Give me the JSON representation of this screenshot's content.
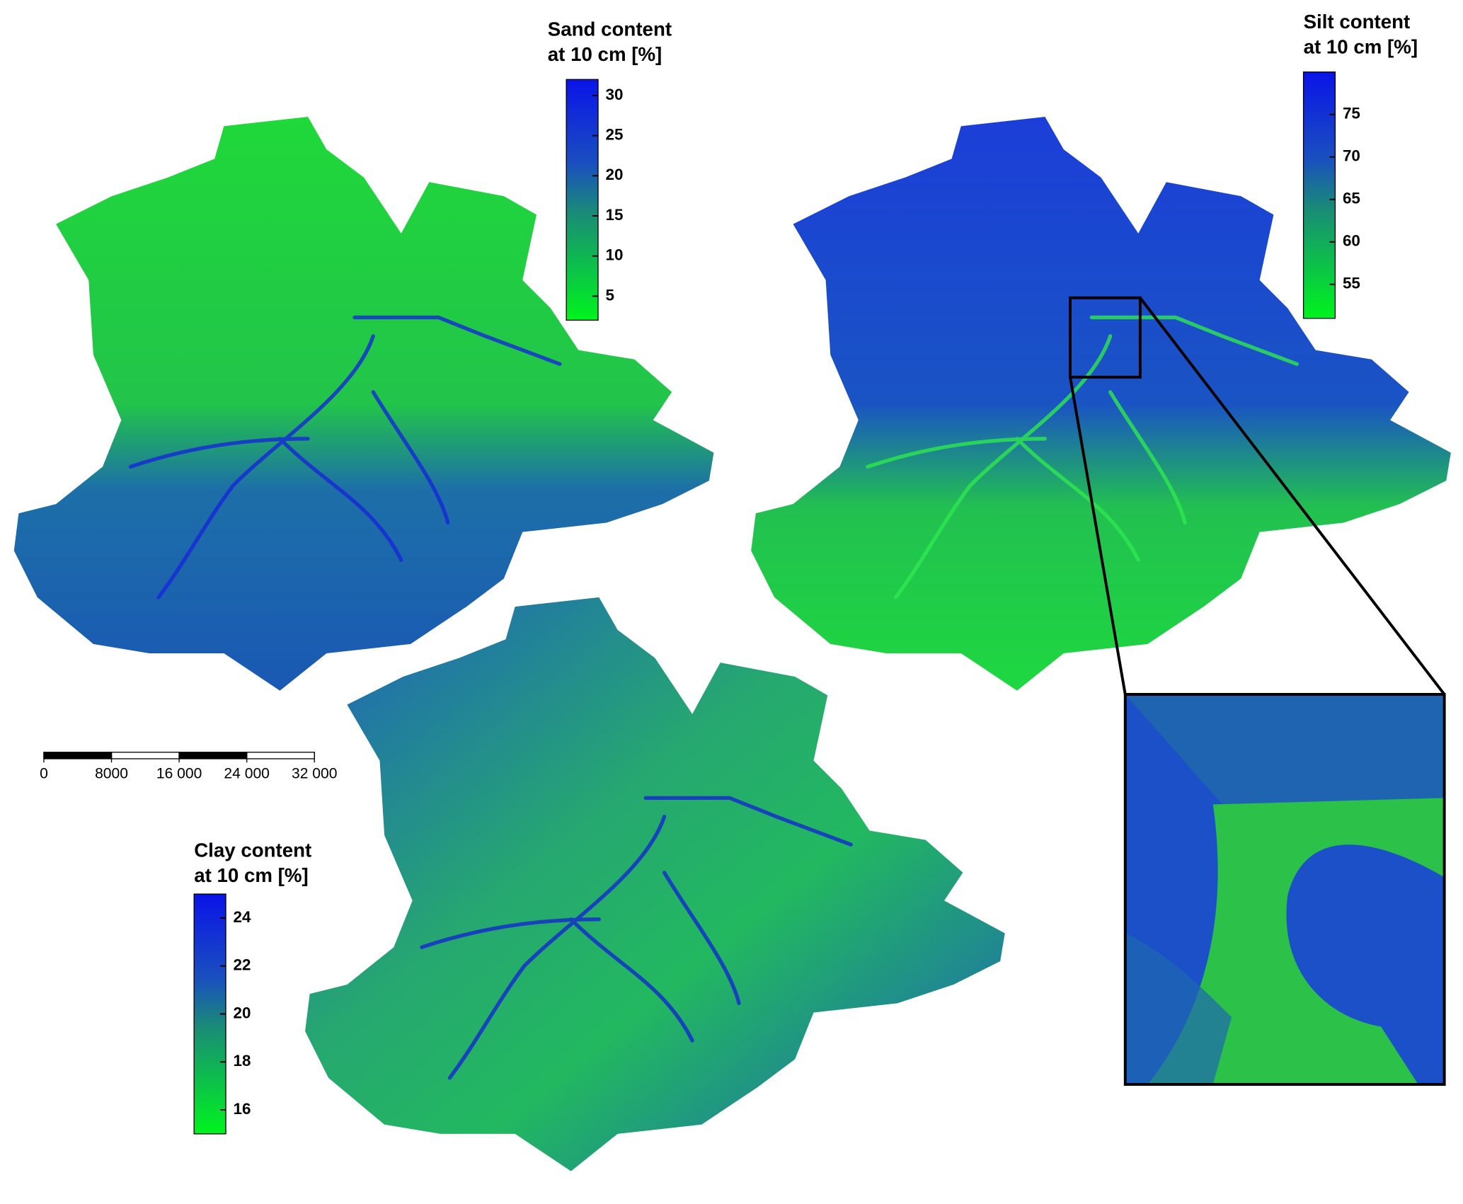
{
  "maps": [
    {
      "title": [
        "Sand content",
        "at 10 cm [%]"
      ],
      "colorbar": {
        "range": [
          2,
          32
        ],
        "ticks": [
          5,
          10,
          15,
          20,
          25,
          30
        ]
      }
    },
    {
      "title": [
        "Silt content",
        "at 10 cm [%]"
      ],
      "colorbar": {
        "range": [
          51,
          80
        ],
        "ticks": [
          55,
          60,
          65,
          70,
          75
        ]
      }
    },
    {
      "title": [
        "Clay content",
        "at 10 cm [%]"
      ],
      "colorbar": {
        "range": [
          15,
          25
        ],
        "ticks": [
          16,
          18,
          20,
          22,
          24
        ]
      }
    }
  ],
  "scale_bar": {
    "range": [
      0,
      32000
    ],
    "ticks": [
      0,
      8000,
      {
        "value": 16000,
        "label": "16 000"
      },
      {
        "value": 24000,
        "label": "24 000"
      },
      {
        "value": 32000,
        "label": "32 000"
      }
    ]
  }
}
